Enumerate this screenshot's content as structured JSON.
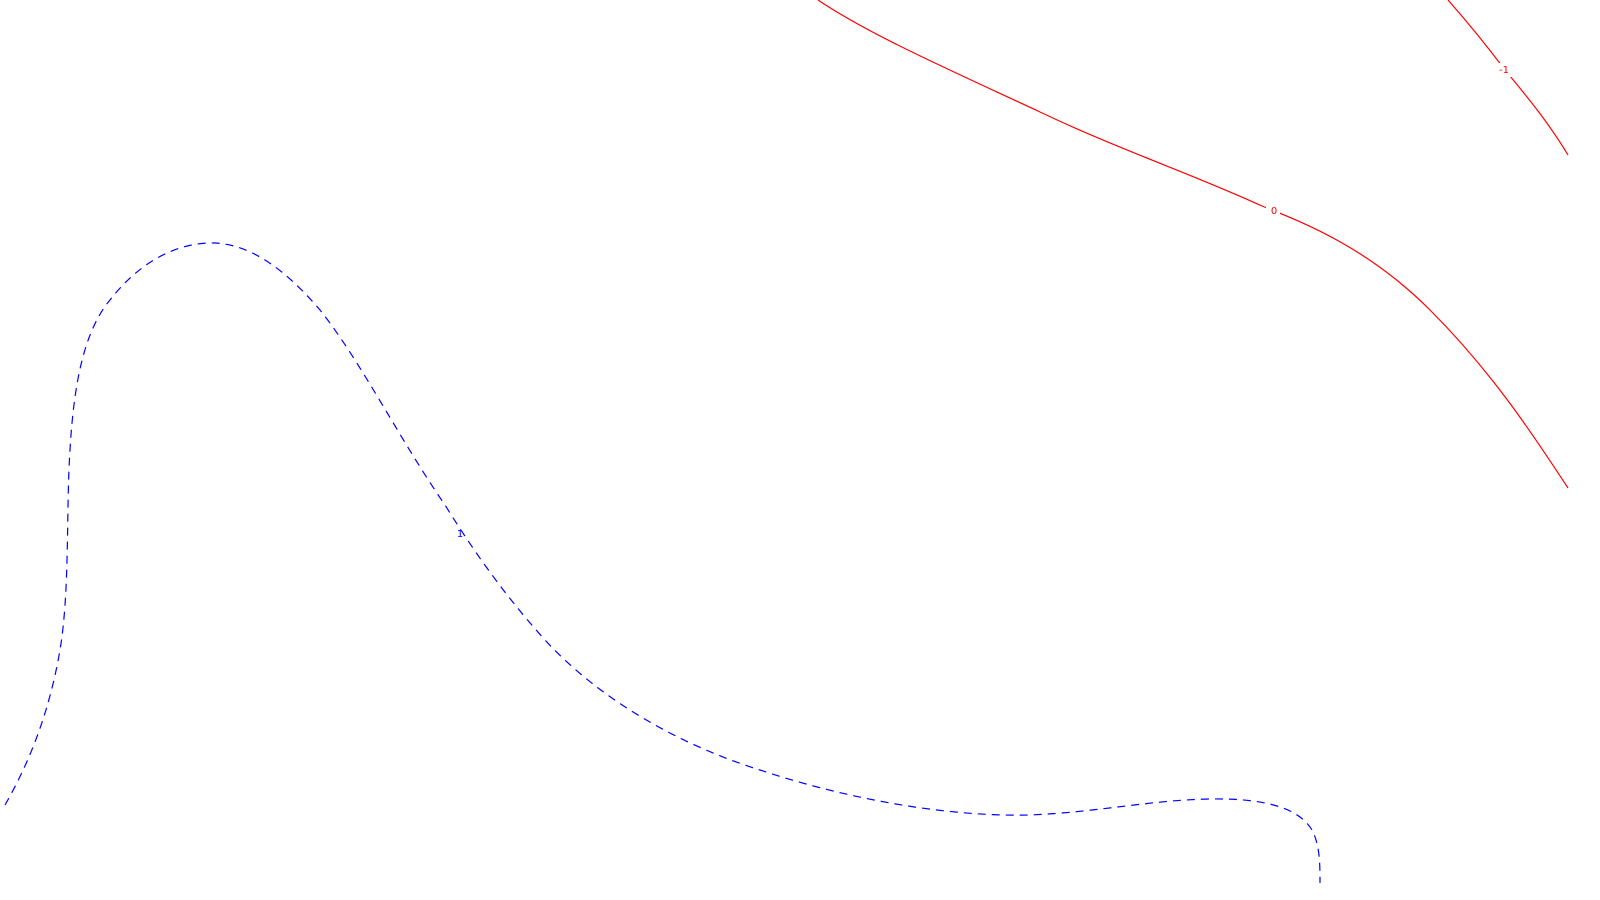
{
  "chart_data": {
    "type": "contour",
    "grid": false,
    "axes_visible": false,
    "contours": [
      {
        "level_label": "1",
        "color": "#0000ff",
        "line_style": "dashed"
      },
      {
        "level_label": "0",
        "color": "#ff0000",
        "line_style": "solid"
      },
      {
        "level_label": "-1",
        "color": "#ff0000",
        "line_style": "solid"
      }
    ]
  }
}
